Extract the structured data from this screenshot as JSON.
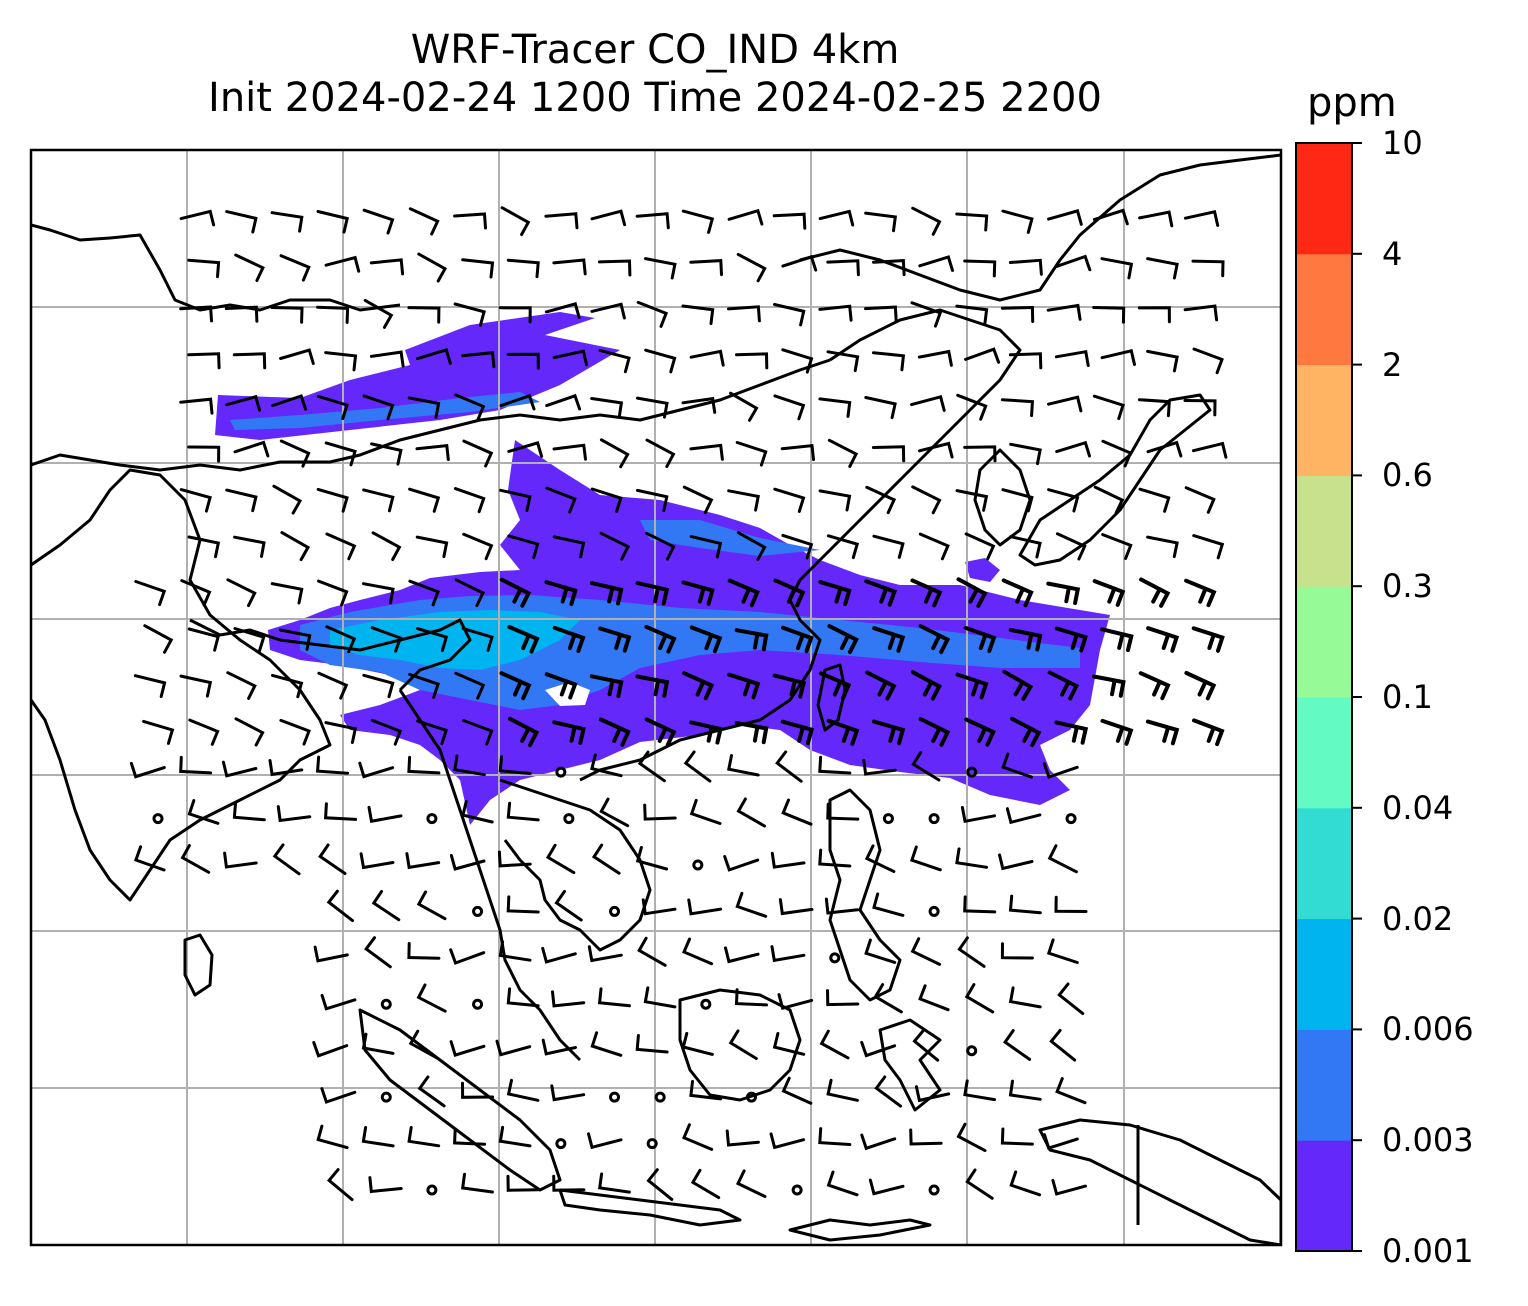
{
  "title_line1": "WRF-Tracer CO_IND 4km",
  "title_line2": "Init 2024-02-24 1200 Time 2024-02-25 2200",
  "colorbar": {
    "unit": "ppm",
    "levels": [
      "0.001",
      "0.003",
      "0.006",
      "0.02",
      "0.04",
      "0.1",
      "0.3",
      "0.6",
      "2",
      "4",
      "10"
    ],
    "colors": [
      "#6428fa",
      "#3278f5",
      "#00b4f0",
      "#32dcd2",
      "#64fac3",
      "#96fa96",
      "#c8e18c",
      "#ffb464",
      "#ff7840",
      "#ff2814"
    ]
  },
  "map": {
    "field": "CO tracer concentration with wind barbs",
    "gridlines": true,
    "plume_colors": {
      "low": "#6428fa",
      "mid": "#3278f5",
      "high": "#00b4f0"
    },
    "coast_color": "#000000",
    "grid_color": "#b0b0b0"
  }
}
